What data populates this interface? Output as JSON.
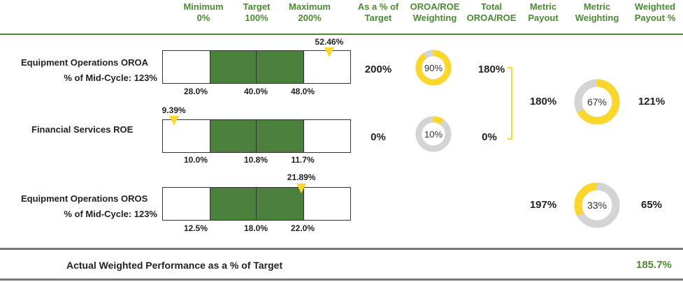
{
  "header": {
    "minimum": "Minimum\n0%",
    "target": "Target\n100%",
    "maximum": "Maximum\n200%",
    "pct_target": "As a % of\nTarget",
    "weighting": "OROA/ROE\nWeighting",
    "total": "Total\nOROA/ROE",
    "metric_payout": "Metric\nPayout",
    "metric_weighting": "Metric\nWeighting",
    "weighted_payout": "Weighted\nPayout %"
  },
  "colors": {
    "green": "#4b7f3c",
    "header_green": "#4b8a32",
    "yellow": "#fbd72e",
    "gray": "#d4d4d4"
  },
  "rows": [
    {
      "label_line1": "Equipment Operations OROA",
      "label_line2": "% of Mid-Cycle:  123%",
      "actual": 52.46,
      "actual_label": "52.46%",
      "min": 28.0,
      "target": 40.0,
      "max": 48.0,
      "min_label": "28.0%",
      "target_label": "40.0%",
      "max_label": "48.0%",
      "pct_of_target": "200%",
      "weighting": 90,
      "weighting_label": "90%"
    },
    {
      "label_line1": "Financial Services ROE",
      "label_line2": "",
      "actual": 9.39,
      "actual_label": "9.39%",
      "min": 10.0,
      "target": 10.8,
      "max": 11.7,
      "min_label": "10.0%",
      "target_label": "10.8%",
      "max_label": "11.7%",
      "pct_of_target": "0%",
      "weighting": 10,
      "weighting_label": "10%"
    },
    {
      "label_line1": "Equipment Operations OROS",
      "label_line2": "% of Mid-Cycle:  123%",
      "actual": 21.89,
      "actual_label": "21.89%",
      "min": 12.5,
      "target": 18.0,
      "max": 22.0,
      "min_label": "12.5%",
      "target_label": "18.0%",
      "max_label": "22.0%"
    }
  ],
  "total_oroa_roe": [
    "180%",
    "0%"
  ],
  "metrics": [
    {
      "payout": "180%",
      "weighting": 67,
      "weighting_label": "67%",
      "weighted_payout": "121%"
    },
    {
      "payout": "197%",
      "weighting": 33,
      "weighting_label": "33%",
      "weighted_payout": "65%"
    }
  ],
  "footer": {
    "label": "Actual Weighted Performance as a % of Target",
    "value": "185.7%"
  },
  "chart_data": {
    "type": "bullet",
    "title": "",
    "series": [
      {
        "name": "Equipment Operations OROA",
        "min": 28.0,
        "target": 40.0,
        "max": 48.0,
        "actual": 52.46,
        "pct_of_target": 200,
        "weighting": 90
      },
      {
        "name": "Financial Services ROE",
        "min": 10.0,
        "target": 10.8,
        "max": 11.7,
        "actual": 9.39,
        "pct_of_target": 0,
        "weighting": 10
      },
      {
        "name": "Equipment Operations OROS",
        "min": 12.5,
        "target": 18.0,
        "max": 22.0,
        "actual": 21.89,
        "metric_payout": 197,
        "metric_weighting": 33,
        "weighted_payout": 65
      }
    ],
    "payout_scale": {
      "minimum": 0,
      "target": 100,
      "maximum": 200
    },
    "total_oroa_roe": [
      180,
      0
    ],
    "metric_payout": [
      180,
      197
    ],
    "metric_weighting": [
      67,
      33
    ],
    "weighted_payout": [
      121,
      65
    ],
    "actual_weighted_performance": 185.7
  }
}
